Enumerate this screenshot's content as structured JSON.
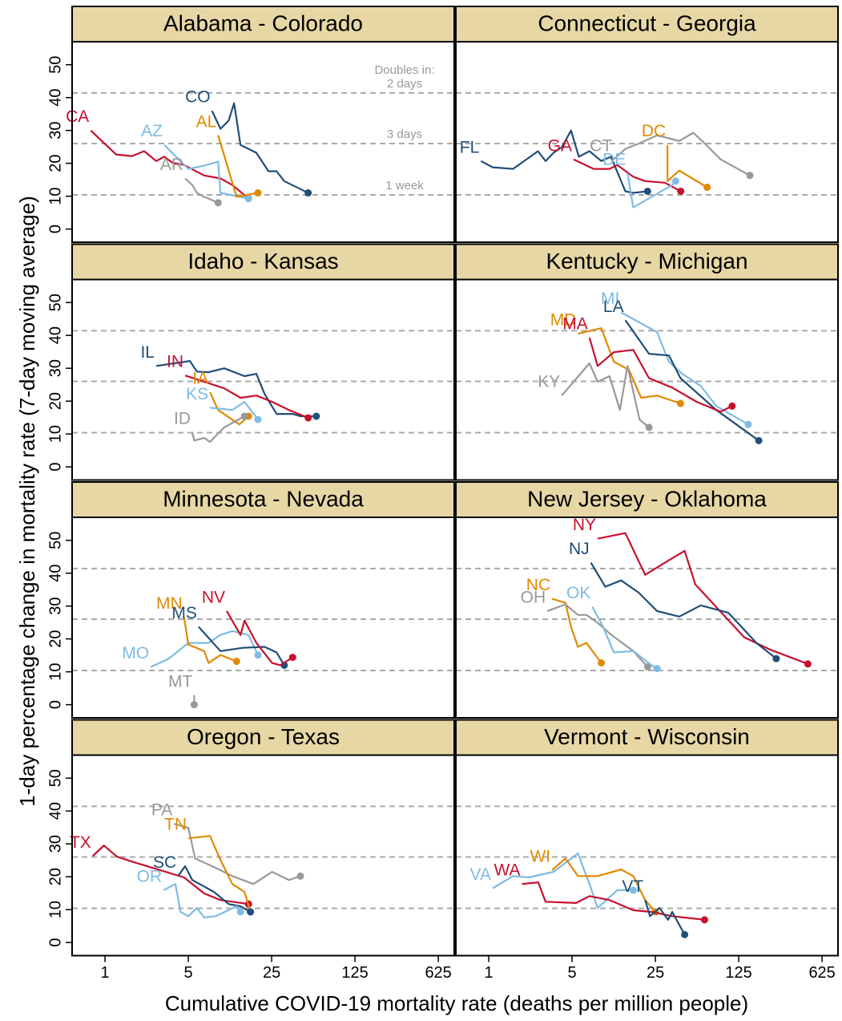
{
  "figure": {
    "xlabel": "Cumulative COVID-19 mortality rate (deaths per million people)",
    "ylabel": "1-day percentage change in mortality rate (7-day moving average)"
  },
  "chart_data": [
    {
      "type": "line",
      "title": "Alabama - Colorado",
      "log_x": true,
      "xlim": [
        0.53,
        850
      ],
      "ylim": [
        -4,
        57
      ],
      "yticks": [
        0,
        10,
        20,
        30,
        40,
        50
      ],
      "hlines_title": "Doubles in:",
      "hlines": [
        {
          "value": 41.4,
          "label": "2 days"
        },
        {
          "value": 26,
          "label": "3 days"
        },
        {
          "value": 10.4,
          "label": "1 week"
        }
      ],
      "series": [
        {
          "name": "CA",
          "color": "#c8102e",
          "x": [
            0.76,
            1.24,
            1.69,
            2.13,
            2.69,
            3.14,
            3.67,
            4.6,
            6.8,
            9.3,
            11.7,
            16
          ],
          "y": [
            30,
            22.7,
            22.2,
            23.7,
            20.7,
            22,
            20.2,
            19.5,
            16.3,
            15.4,
            13.4,
            9.3
          ]
        },
        {
          "name": "AZ",
          "color": "#7fbbe3",
          "x": [
            3.14,
            5,
            6.8,
            8.9,
            9.3,
            16
          ],
          "y": [
            25.6,
            18.3,
            19.3,
            20.5,
            11,
            9.3
          ]
        },
        {
          "name": "AL",
          "color": "#e08a00",
          "x": [
            8.9,
            12.7,
            19.2
          ],
          "y": [
            28.5,
            9.8,
            11
          ]
        },
        {
          "name": "CO",
          "color": "#1f4e79",
          "x": [
            7.9,
            9.3,
            10.9,
            12.1,
            13.7,
            16,
            18.6,
            23.5,
            27.5,
            31.9,
            50.6
          ],
          "y": [
            36,
            30.5,
            33,
            38.3,
            25.6,
            24.4,
            23.2,
            17.6,
            17.6,
            14.6,
            11
          ]
        },
        {
          "name": "AR",
          "color": "#999999",
          "x": [
            4.7,
            5.4,
            5.9,
            6.8,
            8.9
          ],
          "y": [
            15.4,
            13.4,
            11,
            9.8,
            8
          ]
        }
      ]
    },
    {
      "type": "line",
      "title": "Connecticut - Georgia",
      "log_x": true,
      "xlim": [
        0.53,
        850
      ],
      "ylim": [
        -4,
        57
      ],
      "hlines": [
        41.4,
        26,
        10.4
      ],
      "series": [
        {
          "name": "FL",
          "color": "#1f4e79",
          "x": [
            0.86,
            1.08,
            1.6,
            2.59,
            3.0,
            3.5,
            4.1,
            4.9,
            5.7,
            7.0,
            8.8,
            10.6,
            14,
            16.3,
            21.5
          ],
          "y": [
            20.7,
            18.8,
            18.3,
            23.7,
            20.7,
            23.2,
            24.9,
            30,
            22,
            23.7,
            20.7,
            22,
            11.5,
            11,
            11.5
          ]
        },
        {
          "name": "GA",
          "color": "#c8102e",
          "x": [
            5.15,
            7.6,
            10.3,
            12,
            16.3,
            20.5,
            30,
            40.8
          ],
          "y": [
            21.2,
            18.3,
            18.3,
            19.5,
            15.9,
            14.6,
            14.1,
            11.5
          ]
        },
        {
          "name": "CT",
          "color": "#999999",
          "x": [
            11.2,
            14,
            18.4,
            25.8,
            32.5,
            39.6,
            52,
            64.6,
            88,
            155
          ],
          "y": [
            21.2,
            24.4,
            26.1,
            28.5,
            27.6,
            26.8,
            29.3,
            26.1,
            21.2,
            16.3
          ]
        },
        {
          "name": "DC",
          "color": "#e08a00",
          "x": [
            31.6,
            31.6,
            39.6,
            51,
            67.8
          ],
          "y": [
            25.6,
            14.6,
            17.8,
            15.4,
            12.7
          ]
        },
        {
          "name": "DE",
          "color": "#7fbbe3",
          "x": [
            14.6,
            16.3,
            34.6,
            37
          ],
          "y": [
            17,
            6.6,
            13.4,
            14.6
          ]
        }
      ]
    },
    {
      "type": "line",
      "title": "Idaho - Kansas",
      "log_x": true,
      "xlim": [
        0.53,
        850
      ],
      "ylim": [
        -4,
        57
      ],
      "yticks": [
        0,
        10,
        20,
        30,
        40,
        50
      ],
      "hlines": [
        41.4,
        26,
        10.4
      ],
      "series": [
        {
          "name": "IL",
          "color": "#1f4e79",
          "x": [
            2.69,
            5.15,
            5.9,
            7.4,
            10,
            14.8,
            18.6,
            21.8,
            27.5,
            37.5,
            43.6,
            59.3
          ],
          "y": [
            30.7,
            32.2,
            29,
            28.8,
            30,
            27.6,
            28.3,
            22.2,
            16.1,
            16.1,
            15.4,
            15.4
          ]
        },
        {
          "name": "IN",
          "color": "#c8102e",
          "x": [
            4.7,
            6.8,
            10,
            13.7,
            18.6,
            25.2,
            35,
            50.6
          ],
          "y": [
            27.8,
            25.9,
            23.9,
            21,
            21.7,
            19.8,
            17.3,
            14.9
          ]
        },
        {
          "name": "IA",
          "color": "#e08a00",
          "x": [
            7.6,
            8.9,
            13.4,
            16
          ],
          "y": [
            22.7,
            17.3,
            12.9,
            15.4
          ]
        },
        {
          "name": "KS",
          "color": "#7fbbe3",
          "x": [
            7.6,
            11.7,
            14.8,
            19.2
          ],
          "y": [
            18,
            17.3,
            19.8,
            14.4
          ]
        },
        {
          "name": "ID",
          "color": "#999999",
          "x": [
            5.4,
            5.6,
            6.8,
            7.6,
            10,
            14.8
          ],
          "y": [
            10.5,
            8,
            8.8,
            7.6,
            12,
            15.4
          ]
        }
      ]
    },
    {
      "type": "line",
      "title": "Kentucky - Michigan",
      "log_x": true,
      "xlim": [
        0.53,
        850
      ],
      "ylim": [
        -4,
        57
      ],
      "hlines": [
        41.4,
        26,
        10.4
      ],
      "series": [
        {
          "name": "MI",
          "color": "#7fbbe3",
          "x": [
            12.9,
            25.8,
            32.5,
            42,
            60,
            81,
            150
          ],
          "y": [
            47,
            41,
            32,
            28.3,
            24.6,
            18.5,
            12.9
          ]
        },
        {
          "name": "LA",
          "color": "#1f4e79",
          "x": [
            14,
            22.1,
            32.5,
            40.6,
            81,
            184
          ],
          "y": [
            44.6,
            34.4,
            33.9,
            27,
            17.3,
            8
          ]
        },
        {
          "name": "MD",
          "color": "#e08a00",
          "x": [
            5.6,
            8.8,
            11.2,
            15,
            19,
            25.8,
            40.6
          ],
          "y": [
            40.5,
            42.2,
            32,
            29.5,
            21,
            21.7,
            19.3
          ]
        },
        {
          "name": "MA",
          "color": "#c8102e",
          "x": [
            7,
            8.2,
            11.2,
            16.3,
            22.1,
            34.6,
            55.5,
            88,
            110
          ],
          "y": [
            39.3,
            30.7,
            34.9,
            35.6,
            27,
            24.1,
            19.8,
            16.8,
            18.5
          ]
        },
        {
          "name": "KY",
          "color": "#999999",
          "x": [
            4.1,
            7,
            8.2,
            10.3,
            12.6,
            14.6,
            18.4,
            22.1
          ],
          "y": [
            21.7,
            31.5,
            25.9,
            27.6,
            17.3,
            30.7,
            14.4,
            12
          ]
        }
      ]
    },
    {
      "type": "line",
      "title": "Minnesota - Nevada",
      "log_x": true,
      "xlim": [
        0.53,
        850
      ],
      "ylim": [
        -4,
        57
      ],
      "yticks": [
        0,
        10,
        20,
        30,
        40,
        50
      ],
      "hlines": [
        41.4,
        26,
        10.4
      ],
      "series": [
        {
          "name": "MO",
          "color": "#7fbbe3",
          "x": [
            2.42,
            3.4,
            5,
            7.4,
            9.3,
            11.7,
            16,
            19.2
          ],
          "y": [
            11.5,
            13.9,
            18.8,
            18.8,
            21.2,
            22.4,
            21.2,
            15.1
          ]
        },
        {
          "name": "MN",
          "color": "#e08a00",
          "x": [
            4.6,
            5,
            6.8,
            7.4,
            9.3,
            12.7
          ],
          "y": [
            26.6,
            18.3,
            16.3,
            12.7,
            15.1,
            13.2
          ]
        },
        {
          "name": "MS",
          "color": "#1f4e79",
          "x": [
            6.1,
            9.3,
            14.3,
            21.8,
            27.5,
            31.9
          ],
          "y": [
            23.7,
            16.3,
            17.3,
            17.6,
            15.9,
            12
          ]
        },
        {
          "name": "NV",
          "color": "#c8102e",
          "x": [
            10.5,
            13.7,
            14.8,
            18.6,
            25.2,
            29.6,
            37.5
          ],
          "y": [
            28.5,
            21.2,
            25.6,
            18.8,
            12.7,
            12,
            14.4
          ]
        },
        {
          "name": "MT",
          "color": "#999999",
          "x": [
            5.6,
            5.6
          ],
          "y": [
            2.9,
            0
          ]
        }
      ]
    },
    {
      "type": "line",
      "title": "New Jersey - Oklahoma",
      "log_x": true,
      "xlim": [
        0.53,
        850
      ],
      "ylim": [
        -4,
        57
      ],
      "hlines": [
        41.4,
        26,
        10.4
      ],
      "series": [
        {
          "name": "NY",
          "color": "#c8102e",
          "x": [
            8.2,
            14,
            20.5,
            30,
            44,
            54,
            139,
            228,
            475
          ],
          "y": [
            50.5,
            52.2,
            39.5,
            43.2,
            46.8,
            36.6,
            20.5,
            16.8,
            12.4
          ]
        },
        {
          "name": "NJ",
          "color": "#1f4e79",
          "x": [
            7.2,
            9.5,
            12.9,
            18.1,
            25.8,
            39.6,
            60,
            102,
            176,
            258
          ],
          "y": [
            43.2,
            35.9,
            37.8,
            34.1,
            28.5,
            26.8,
            30.2,
            28,
            18.8,
            14
          ]
        },
        {
          "name": "NC",
          "color": "#e08a00",
          "x": [
            3.4,
            4.4,
            4.9,
            5.6,
            6.6,
            8.8
          ],
          "y": [
            32.2,
            31,
            23.7,
            17.6,
            18.8,
            12.7
          ]
        },
        {
          "name": "OH",
          "color": "#999999",
          "x": [
            3.1,
            4.4,
            5.6,
            6.6,
            8.2,
            10.3,
            16.3,
            21.5
          ],
          "y": [
            28.5,
            30.5,
            27.3,
            27.3,
            24.9,
            21.7,
            16.3,
            11.5
          ]
        },
        {
          "name": "OK",
          "color": "#7fbbe3",
          "x": [
            7.4,
            9.1,
            11.2,
            16.3,
            23.2,
            25.8
          ],
          "y": [
            29.8,
            23.7,
            15.9,
            16.3,
            12,
            11
          ]
        }
      ]
    },
    {
      "type": "line",
      "title": "Oregon - Texas",
      "log_x": true,
      "xlim": [
        0.53,
        850
      ],
      "ylim": [
        -4,
        57
      ],
      "yticks": [
        0,
        10,
        20,
        30,
        40,
        50
      ],
      "xticks": [
        1,
        5,
        25,
        125,
        625
      ],
      "hlines": [
        41.4,
        26,
        10.4
      ],
      "series": [
        {
          "name": "TX",
          "color": "#c8102e",
          "x": [
            0.79,
            0.98,
            1.26,
            1.69,
            2.51,
            4.6,
            6.8,
            9.3,
            16
          ],
          "y": [
            26.3,
            29.5,
            26.1,
            24.6,
            22.7,
            19.8,
            14.9,
            12.9,
            11.7
          ]
        },
        {
          "name": "PA",
          "color": "#999999",
          "x": [
            3.8,
            5,
            5.7,
            8.5,
            11.7,
            17.6,
            25.2,
            35,
            43.6
          ],
          "y": [
            36.1,
            34.9,
            25.6,
            22.7,
            20.2,
            17.8,
            21.5,
            19,
            20.2
          ]
        },
        {
          "name": "TN",
          "color": "#e08a00",
          "x": [
            5,
            7.6,
            9.3,
            11.7,
            14.8,
            16.6
          ],
          "y": [
            31.7,
            32.4,
            25.1,
            17.8,
            15.4,
            9.3
          ]
        },
        {
          "name": "SC",
          "color": "#1f4e79",
          "x": [
            4.1,
            4.7,
            5.4,
            8.2,
            10.9,
            13.7,
            16.6
          ],
          "y": [
            20.2,
            23.2,
            19,
            15.4,
            11.7,
            11,
            9.3
          ]
        },
        {
          "name": "OR",
          "color": "#7fbbe3",
          "x": [
            3.1,
            3.9,
            4.3,
            5,
            5.9,
            6.8,
            8.5,
            12.7,
            13.7
          ],
          "y": [
            15.9,
            17.8,
            9.3,
            8,
            10.5,
            7.6,
            8,
            11,
            9.3
          ]
        }
      ]
    },
    {
      "type": "line",
      "title": "Vermont - Wisconsin",
      "log_x": true,
      "xlim": [
        0.53,
        850
      ],
      "ylim": [
        -4,
        57
      ],
      "xticks": [
        1,
        5,
        25,
        125,
        625
      ],
      "hlines": [
        41.4,
        26,
        10.4
      ],
      "series": [
        {
          "name": "VA",
          "color": "#7fbbe3",
          "x": [
            1.08,
            1.6,
            2.16,
            3.5,
            5.6,
            7.0,
            8.2,
            12,
            16.3
          ],
          "y": [
            16.5,
            20.2,
            19.8,
            21.5,
            27.1,
            17.8,
            10.5,
            15.9,
            15.9
          ]
        },
        {
          "name": "WI",
          "color": "#e08a00",
          "x": [
            3.4,
            4.4,
            5.6,
            8.2,
            12.9,
            16.3,
            20.5,
            25
          ],
          "y": [
            22,
            25.6,
            20.2,
            20.2,
            22.2,
            20.2,
            12.9,
            9.3
          ]
        },
        {
          "name": "WA",
          "color": "#c8102e",
          "x": [
            1.9,
            2.6,
            3.0,
            5.4,
            7.0,
            10.3,
            16.3,
            23.2,
            34.6,
            44,
            64.6
          ],
          "y": [
            17.8,
            18.3,
            12.4,
            12,
            14.1,
            12.9,
            9.8,
            9.3,
            8,
            7.6,
            6.9
          ]
        },
        {
          "name": "VT",
          "color": "#1f4e79",
          "x": [
            20.5,
            22.5,
            27,
            32,
            34.6,
            44
          ],
          "y": [
            12.9,
            8,
            10.5,
            6.9,
            9.3,
            2.4
          ]
        }
      ]
    }
  ]
}
